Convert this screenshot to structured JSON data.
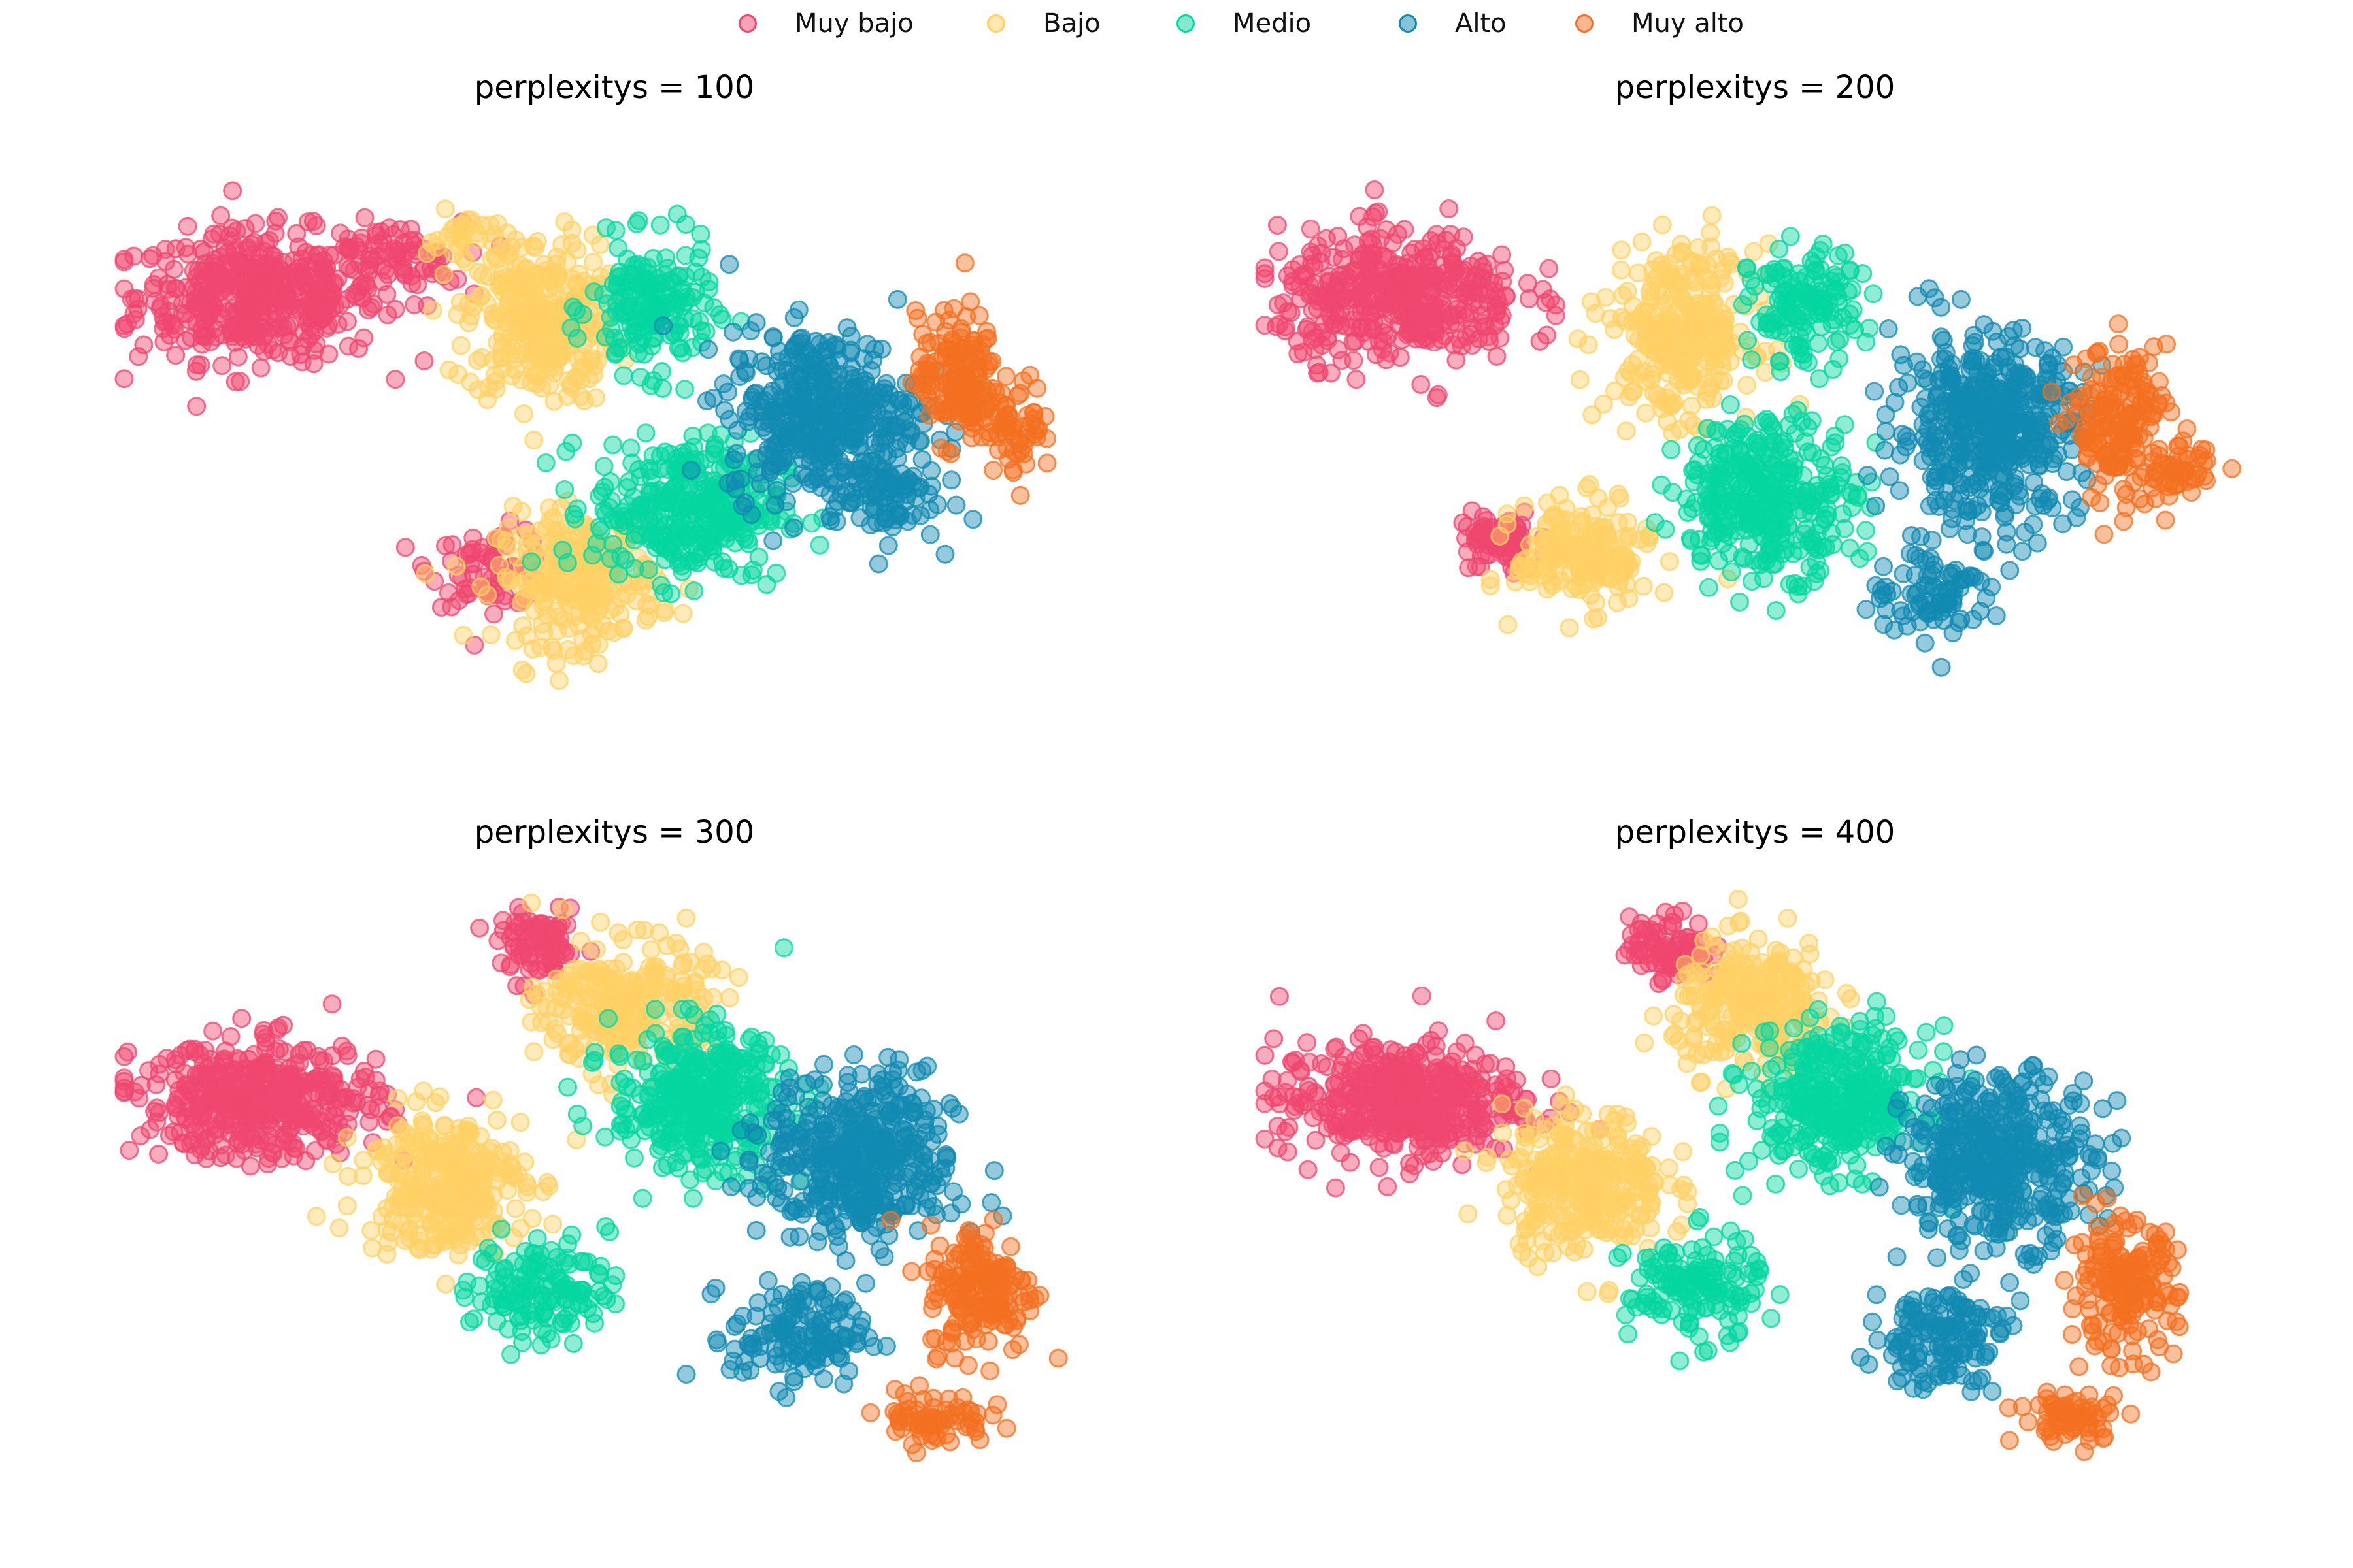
{
  "legend": {
    "items": [
      {
        "label": "Muy bajo",
        "color": "#ef476f"
      },
      {
        "label": "Bajo",
        "color": "#ffd166"
      },
      {
        "label": "Medio",
        "color": "#06d6a0"
      },
      {
        "label": "Alto",
        "color": "#118ab2"
      },
      {
        "label": "Muy alto",
        "color": "#f37021"
      }
    ]
  },
  "chart_data": [
    {
      "type": "scatter",
      "title": "perplexitys = 100",
      "axes_visible": false,
      "series": [
        {
          "name": "Muy bajo",
          "color": "#ef476f",
          "clusters": [
            [
              -58,
              24,
              18,
              10,
              460
            ],
            [
              -20,
              -22,
              9,
              6,
              70
            ],
            [
              -36,
              30,
              10,
              6,
              70
            ]
          ]
        },
        {
          "name": "Bajo",
          "color": "#ffd166",
          "clusters": [
            [
              -12,
              20,
              11,
              13,
              320
            ],
            [
              -6,
              -24,
              12,
              10,
              260
            ],
            [
              -24,
              34,
              6,
              4,
              30
            ]
          ]
        },
        {
          "name": "Medio",
          "color": "#06d6a0",
          "clusters": [
            [
              6,
              22,
              9,
              10,
              180
            ],
            [
              12,
              -12,
              14,
              11,
              340
            ]
          ]
        },
        {
          "name": "Alto",
          "color": "#118ab2",
          "clusters": [
            [
              34,
              4,
              14,
              13,
              420
            ],
            [
              44,
              -10,
              8,
              7,
              80
            ]
          ]
        },
        {
          "name": "Muy alto",
          "color": "#f37021",
          "clusters": [
            [
              56,
              10,
              6,
              10,
              170
            ],
            [
              66,
              2,
              5,
              7,
              60
            ]
          ]
        }
      ]
    },
    {
      "type": "scatter",
      "title": "perplexitys = 200",
      "axes_visible": false,
      "series": [
        {
          "name": "Muy bajo",
          "color": "#ef476f",
          "clusters": [
            [
              -58,
              24,
              18,
              10,
              430
            ],
            [
              -42,
              -18,
              6,
              5,
              70
            ]
          ]
        },
        {
          "name": "Bajo",
          "color": "#ffd166",
          "clusters": [
            [
              -12,
              18,
              11,
              13,
              300
            ],
            [
              -28,
              -20,
              10,
              8,
              190
            ]
          ]
        },
        {
          "name": "Medio",
          "color": "#06d6a0",
          "clusters": [
            [
              8,
              22,
              8,
              9,
              140
            ],
            [
              2,
              -10,
              13,
              12,
              360
            ]
          ]
        },
        {
          "name": "Alto",
          "color": "#118ab2",
          "clusters": [
            [
              38,
              2,
              14,
              14,
              460
            ],
            [
              30,
              -26,
              10,
              7,
              90
            ]
          ]
        },
        {
          "name": "Muy alto",
          "color": "#f37021",
          "clusters": [
            [
              60,
              2,
              7,
              12,
              190
            ],
            [
              70,
              -6,
              4,
              4,
              40
            ]
          ]
        }
      ]
    },
    {
      "type": "scatter",
      "title": "perplexitys = 300",
      "axes_visible": false,
      "series": [
        {
          "name": "Muy bajo",
          "color": "#ef476f",
          "clusters": [
            [
              -58,
              14,
              18,
              9,
              430
            ],
            [
              -12,
              40,
              6,
              5,
              90
            ]
          ]
        },
        {
          "name": "Bajo",
          "color": "#ffd166",
          "clusters": [
            [
              -28,
              0,
              12,
              11,
              300
            ],
            [
              2,
              30,
              12,
              10,
              260
            ]
          ]
        },
        {
          "name": "Medio",
          "color": "#06d6a0",
          "clusters": [
            [
              14,
              14,
              13,
              11,
              380
            ],
            [
              -12,
              -18,
              10,
              8,
              140
            ]
          ]
        },
        {
          "name": "Alto",
          "color": "#118ab2",
          "clusters": [
            [
              40,
              4,
              14,
              13,
              430
            ],
            [
              30,
              -26,
              10,
              8,
              140
            ]
          ]
        },
        {
          "name": "Muy alto",
          "color": "#f37021",
          "clusters": [
            [
              60,
              -18,
              8,
              10,
              180
            ],
            [
              52,
              -40,
              8,
              4,
              70
            ]
          ]
        }
      ]
    },
    {
      "type": "scatter",
      "title": "perplexitys = 400",
      "axes_visible": false,
      "series": [
        {
          "name": "Muy bajo",
          "color": "#ef476f",
          "clusters": [
            [
              -58,
              14,
              18,
              9,
              430
            ],
            [
              -14,
              40,
              6,
              5,
              90
            ]
          ]
        },
        {
          "name": "Bajo",
          "color": "#ffd166",
          "clusters": [
            [
              -28,
              0,
              12,
              11,
              300
            ],
            [
              0,
              30,
              12,
              10,
              260
            ]
          ]
        },
        {
          "name": "Medio",
          "color": "#06d6a0",
          "clusters": [
            [
              14,
              14,
              13,
              11,
              380
            ],
            [
              -10,
              -18,
              10,
              8,
              140
            ]
          ]
        },
        {
          "name": "Alto",
          "color": "#118ab2",
          "clusters": [
            [
              40,
              4,
              14,
              13,
              430
            ],
            [
              30,
              -26,
              10,
              8,
              140
            ]
          ]
        },
        {
          "name": "Muy alto",
          "color": "#f37021",
          "clusters": [
            [
              60,
              -18,
              8,
              10,
              180
            ],
            [
              52,
              -40,
              8,
              4,
              70
            ]
          ]
        }
      ]
    }
  ]
}
